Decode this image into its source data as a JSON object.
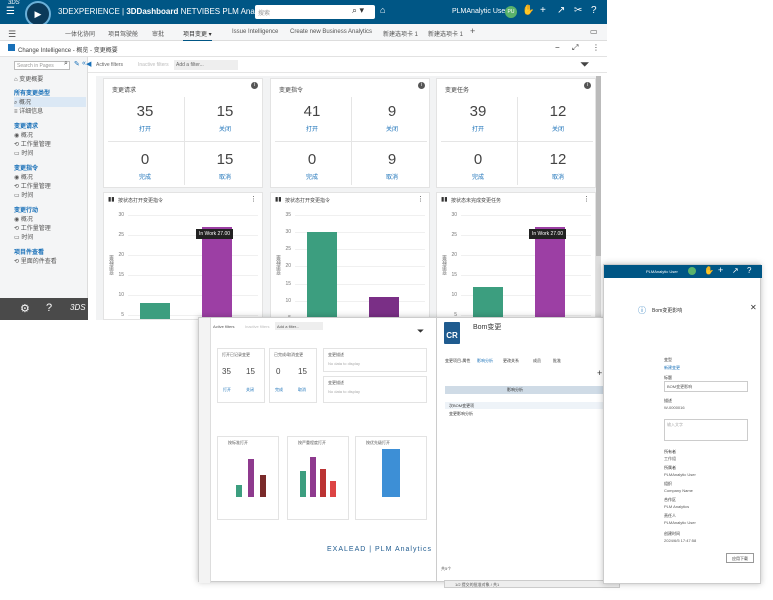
{
  "topbar": {
    "brand": "3DEXPERIENCE | 3DDashboard NETVIBES PLM Analytics",
    "brand_part1": "3DEXPERIENCE | ",
    "brand_part2": "3DDashboard",
    "brand_part3": " NETVIBES PLM Analytics",
    "search_placeholder": "搜索",
    "user": "PLMAnalytic User",
    "avatar": "PU"
  },
  "tabs": [
    "一体化协同",
    "项目驾驶舱",
    "审批",
    "项目变更",
    "Issue Intelligence",
    "Create new Business Analytics",
    "新建选项卡 1",
    "新建选项卡 1"
  ],
  "crumb": "Change Intelligence - 概览 - 变更概要",
  "sidebar": {
    "search": "Search in Pages",
    "overview": "变更概要",
    "group1": "所有变更类型",
    "g1_items": [
      "概况",
      "详细信息"
    ],
    "group2": "变更请求",
    "g2_items": [
      "概况",
      "工作量管理",
      "时间"
    ],
    "group3": "变更指令",
    "g3_items": [
      "概况",
      "工作量管理",
      "时间"
    ],
    "group4": "变更行动",
    "g4_items": [
      "概况",
      "工作量管理",
      "时间"
    ],
    "group5": "项目件查看",
    "g5_items": [
      "里面的件查看"
    ]
  },
  "filterbar": {
    "active": "Active filters",
    "inactive": "Inactive filters",
    "add": "Add a filter..."
  },
  "panels": [
    {
      "title": "变更请求",
      "kpis": [
        {
          "n": "35",
          "l": "打开"
        },
        {
          "n": "15",
          "l": "关闭"
        },
        {
          "n": "0",
          "l": "完成"
        },
        {
          "n": "15",
          "l": "取消"
        }
      ],
      "chart_title": "按状态打开变更指令"
    },
    {
      "title": "变更指令",
      "kpis": [
        {
          "n": "41",
          "l": "打开"
        },
        {
          "n": "9",
          "l": "关闭"
        },
        {
          "n": "0",
          "l": "完成"
        },
        {
          "n": "9",
          "l": "取消"
        }
      ],
      "chart_title": "按状态打开变更指令"
    },
    {
      "title": "变更任务",
      "kpis": [
        {
          "n": "39",
          "l": "打开"
        },
        {
          "n": "12",
          "l": "关闭"
        },
        {
          "n": "0",
          "l": "完成"
        },
        {
          "n": "12",
          "l": "取消"
        }
      ],
      "chart_title": "按状态未完成变更任务"
    }
  ],
  "chart_data": [
    {
      "type": "bar",
      "categories": [
        "",
        "In Work"
      ],
      "values": [
        8,
        27
      ],
      "ylim": [
        0,
        30
      ],
      "yticks": [
        "30",
        "25",
        "20",
        "15",
        "10",
        "5"
      ],
      "ylabel": "变更数量",
      "colors": [
        "#3c9e7f",
        "#9c3fa4"
      ],
      "tooltip": "In Work 27.00"
    },
    {
      "type": "bar",
      "categories": [
        "",
        ""
      ],
      "values": [
        30,
        11
      ],
      "ylim": [
        0,
        35
      ],
      "yticks": [
        "35",
        "30",
        "25",
        "20",
        "15",
        "10",
        "5"
      ],
      "ylabel": "变更数量",
      "colors": [
        "#3c9e7f",
        "#7a2f86"
      ]
    },
    {
      "type": "bar",
      "categories": [
        "",
        "In Work"
      ],
      "values": [
        12,
        27
      ],
      "ylim": [
        0,
        30
      ],
      "yticks": [
        "30",
        "25",
        "20",
        "15",
        "10",
        "5"
      ],
      "ylabel": "变更数量",
      "colors": [
        "#3c9e7f",
        "#9c3fa4"
      ],
      "tooltip": "In Work 27.00"
    }
  ],
  "shot2": {
    "active": "Active filters",
    "inactive": "Inactive filters",
    "add": "Add a filter...",
    "kpi_titles": [
      "打开已记录变更",
      "已完成/取消变更",
      "变更描述"
    ],
    "kpis": [
      {
        "n": "35",
        "l": "打开"
      },
      {
        "n": "15",
        "l": "关闭"
      },
      {
        "n": "0",
        "l": "完成"
      },
      {
        "n": "15",
        "l": "取消"
      }
    ],
    "no_data": "No data to display",
    "chart_titles": [
      "按标准打开",
      "按严重程度打开",
      "按优先级打开"
    ],
    "footer_logo": "EXALEAD | PLM Analytics"
  },
  "cr": {
    "badge": "CR",
    "title": "Bom变更",
    "tabs": [
      "变更项目-属性",
      "影响分析",
      "更改关系",
      "成员",
      "批准"
    ],
    "table_header": "影响分析",
    "rows": [
      "次BOM变更项",
      "变更影响分析"
    ],
    "paging": "共5个",
    "status": "1/2 提交的批准对象 / 共1"
  },
  "shot3": {
    "user": "PLMAnalytic User",
    "header": "Bom变更影响",
    "labels": [
      "变型",
      "标题",
      "描述",
      "所有者",
      "所属者",
      "组织",
      "合作区",
      "责任人",
      "创建时间"
    ],
    "values": [
      "新建变更",
      "BOM变更影响",
      "",
      "工作组",
      "PLMAnalytic User",
      "Company Name",
      "PLM Analytics",
      "PLMAnalytic User",
      "2024/6/5 17:47:58"
    ],
    "name_value": "W-0000016",
    "desc_placeholder": "输入文字",
    "apply": "应用下载"
  }
}
